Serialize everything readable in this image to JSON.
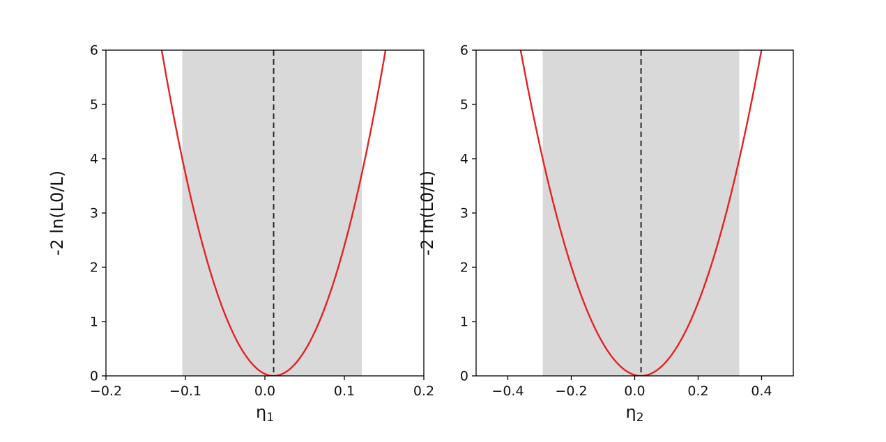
{
  "figure": {
    "background": "#ffffff",
    "panel_count": 2
  },
  "chart_data": [
    {
      "type": "line",
      "title": "",
      "xlabel": {
        "base": "η",
        "sub": "1"
      },
      "ylabel": "-2 ln(L0/L)",
      "xlim": [
        -0.2,
        0.2
      ],
      "ylim": [
        0,
        6
      ],
      "xticks": [
        -0.2,
        -0.1,
        0.0,
        0.1,
        0.2
      ],
      "xtick_labels": [
        "−0.2",
        "−0.1",
        "0.0",
        "0.1",
        "0.2"
      ],
      "yticks": [
        0,
        1,
        2,
        3,
        4,
        5,
        6
      ],
      "ytick_labels": [
        "0",
        "1",
        "2",
        "3",
        "4",
        "5",
        "6"
      ],
      "grid": false,
      "legend": null,
      "curve": {
        "model": "parabola",
        "description": "y = ((x - vertex_x)/sigma)^2",
        "vertex_x": 0.011,
        "sigma": 0.0575,
        "color": "#e32222",
        "x_at_y6": [
          -0.13,
          0.152
        ]
      },
      "band": {
        "x_min": -0.104,
        "x_max": 0.122,
        "color": "#d9d9d9"
      },
      "vline": {
        "x": 0.011,
        "style": "dashed",
        "color": "#2a2a2a"
      }
    },
    {
      "type": "line",
      "title": "",
      "xlabel": {
        "base": "η",
        "sub": "2"
      },
      "ylabel": "-2 ln(L0/L)",
      "xlim": [
        -0.5,
        0.5
      ],
      "ylim": [
        0,
        6
      ],
      "xticks": [
        -0.4,
        -0.2,
        0.0,
        0.2,
        0.4
      ],
      "xtick_labels": [
        "−0.4",
        "−0.2",
        "0.0",
        "0.2",
        "0.4"
      ],
      "yticks": [
        0,
        1,
        2,
        3,
        4,
        5,
        6
      ],
      "ytick_labels": [
        "0",
        "1",
        "2",
        "3",
        "4",
        "5",
        "6"
      ],
      "grid": false,
      "legend": null,
      "curve": {
        "model": "parabola",
        "description": "y = ((x - vertex_x)/sigma)^2",
        "vertex_x": 0.02,
        "sigma": 0.155,
        "color": "#e32222",
        "x_at_y6": [
          -0.36,
          0.4
        ]
      },
      "band": {
        "x_min": -0.29,
        "x_max": 0.33,
        "color": "#d9d9d9"
      },
      "vline": {
        "x": 0.02,
        "style": "dashed",
        "color": "#2a2a2a"
      }
    }
  ]
}
